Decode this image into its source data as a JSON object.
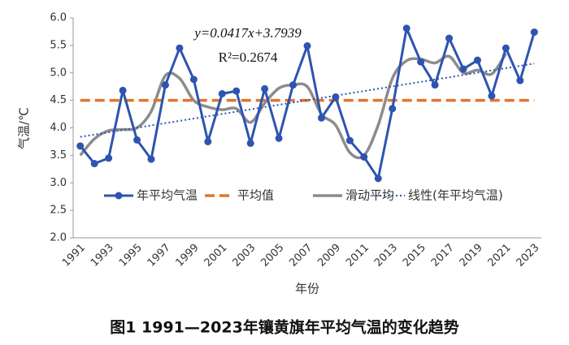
{
  "chart_data": {
    "type": "line",
    "caption": "图1 1991—2023年镶黄旗年平均气温的变化趋势",
    "xlabel": "年份",
    "ylabel": "气温/℃",
    "annotations": [
      "y=0.0417x+3.7939",
      "R²=0.2674"
    ],
    "categories": [
      "1991",
      null,
      "1993",
      null,
      "1995",
      null,
      "1997",
      null,
      "1999",
      null,
      "2001",
      null,
      "2003",
      null,
      "2005",
      null,
      "2007",
      null,
      "2009",
      null,
      "2011",
      null,
      "2013",
      null,
      "2015",
      null,
      "2017",
      null,
      "2019",
      null,
      "2021",
      null,
      "2023"
    ],
    "ylim": [
      2.0,
      6.0
    ],
    "yticks": [
      {
        "value": 2,
        "label": "2.0"
      },
      {
        "value": 2.5,
        "label": "2.5"
      },
      {
        "value": 3,
        "label": "3.0"
      },
      {
        "value": 3.5,
        "label": "3.5"
      },
      {
        "value": 4,
        "label": "4.0"
      },
      {
        "value": 4.5,
        "label": "4.5"
      },
      {
        "value": 5,
        "label": "5.0"
      },
      {
        "value": 5.5,
        "label": "5.5"
      },
      {
        "value": 6,
        "label": "6.0"
      }
    ],
    "grid": false,
    "legend": "bottom",
    "series": [
      {
        "name": "年平均气温",
        "color": "#2e54b0",
        "style": "solid",
        "marker": true,
        "values": [
          3.67,
          3.35,
          3.45,
          4.68,
          3.78,
          3.43,
          4.78,
          5.45,
          4.88,
          3.75,
          4.62,
          4.67,
          3.72,
          4.71,
          3.81,
          4.78,
          5.49,
          4.18,
          4.56,
          3.77,
          3.47,
          3.08,
          4.35,
          5.81,
          5.2,
          4.78,
          5.63,
          5.07,
          5.23,
          4.58,
          5.45,
          4.86,
          5.74
        ]
      },
      {
        "name": "平均值",
        "color": "#e4742b",
        "style": "dashed",
        "marker": false,
        "values": [
          4.5,
          4.5,
          4.5,
          4.5,
          4.5,
          4.5,
          4.5,
          4.5,
          4.5,
          4.5,
          4.5,
          4.5,
          4.5,
          4.5,
          4.5,
          4.5,
          4.5,
          4.5,
          4.5,
          4.5,
          4.5,
          4.5,
          4.5,
          4.5,
          4.5,
          4.5,
          4.5,
          4.5,
          4.5,
          4.5,
          4.5,
          4.5,
          4.5
        ]
      },
      {
        "name": "滑动平均",
        "color": "#8c8c8c",
        "style": "smooth",
        "marker": false,
        "values": [
          3.5,
          3.8,
          3.95,
          3.97,
          4.0,
          4.3,
          4.95,
          4.9,
          4.5,
          4.38,
          4.33,
          4.35,
          4.1,
          4.45,
          4.72,
          4.78,
          4.75,
          4.25,
          4.05,
          3.55,
          3.5,
          4.05,
          4.9,
          5.22,
          5.25,
          5.18,
          5.3,
          5.0,
          5.05,
          4.98,
          5.35,
          null,
          null
        ]
      },
      {
        "name": "线性(年平均气温)",
        "color": "#2e54b0",
        "style": "dotted",
        "marker": false,
        "values": [
          3.836,
          3.877,
          3.919,
          3.961,
          4.002,
          4.044,
          4.086,
          4.127,
          4.169,
          4.211,
          4.253,
          4.294,
          4.336,
          4.378,
          4.419,
          4.461,
          4.503,
          4.544,
          4.586,
          4.628,
          4.669,
          4.711,
          4.753,
          4.795,
          4.836,
          4.878,
          4.92,
          4.961,
          5.003,
          5.045,
          5.086,
          5.128,
          5.17
        ]
      }
    ]
  }
}
